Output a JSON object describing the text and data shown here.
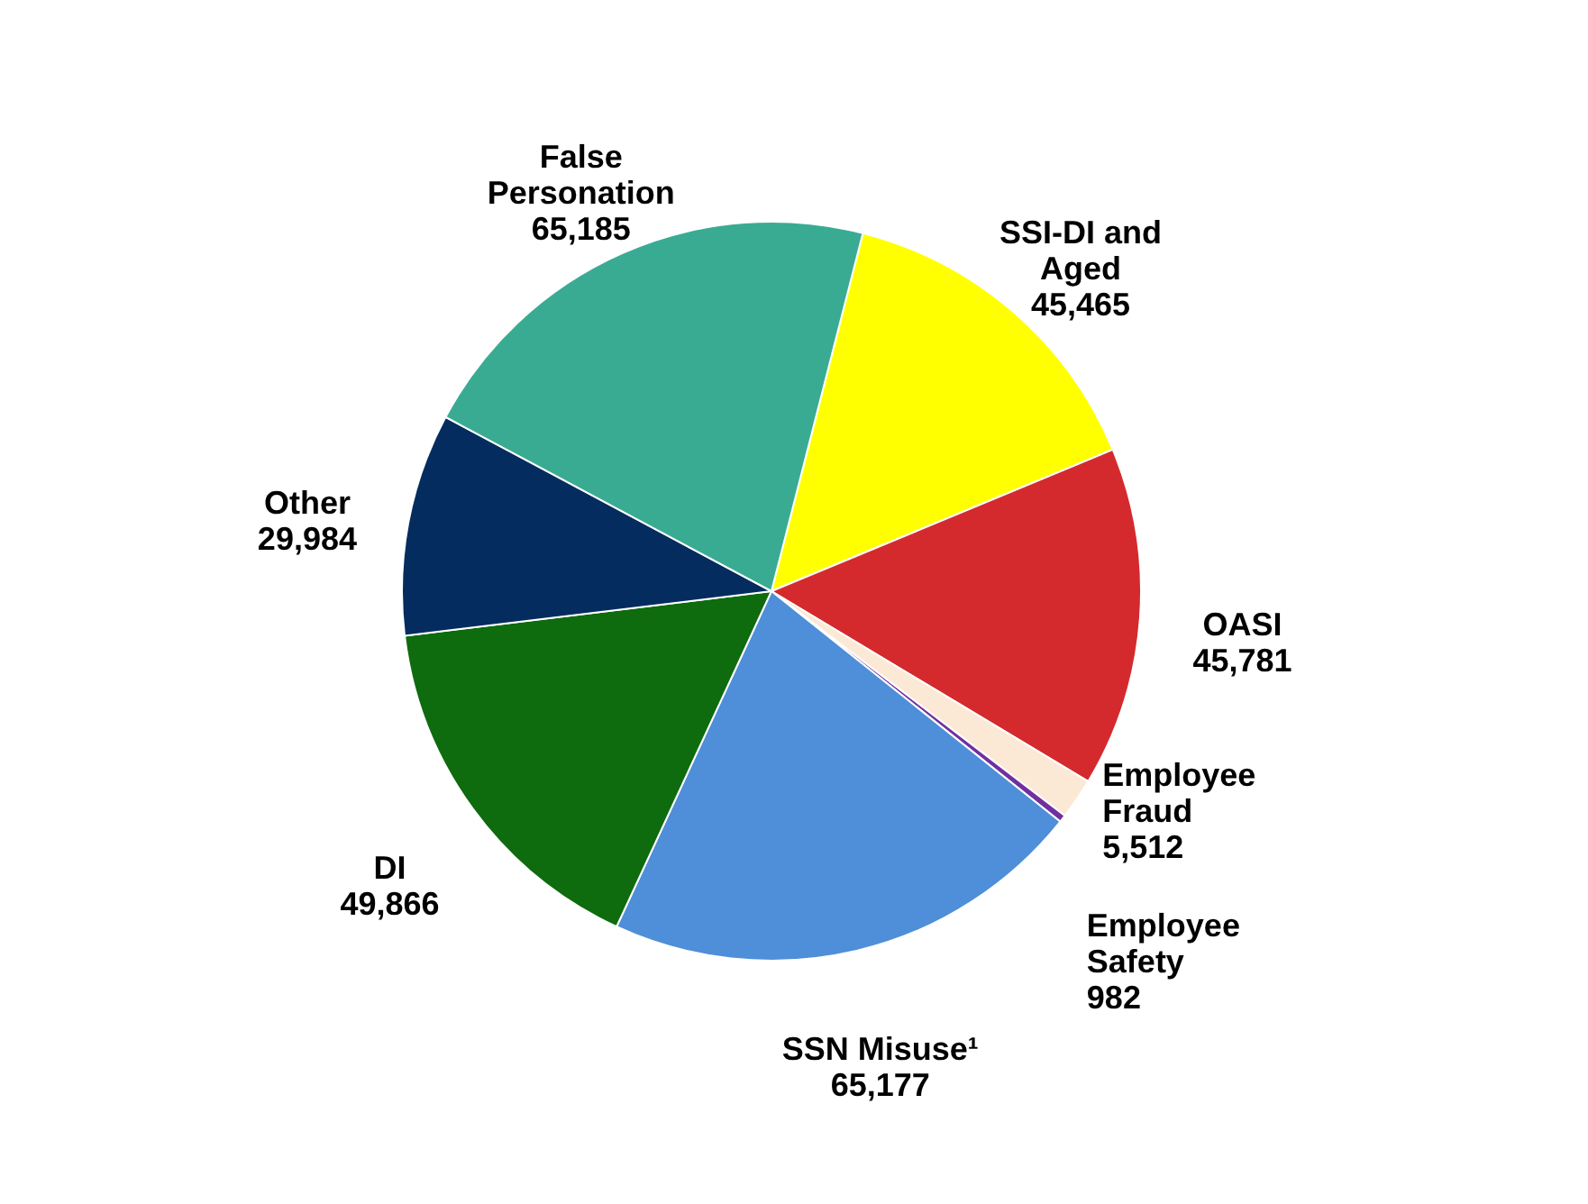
{
  "chart_data": {
    "type": "pie",
    "categories": [
      "SSI-DI and Aged",
      "OASI",
      "Employee Fraud",
      "Employee Safety",
      "SSN Misuse¹",
      "DI",
      "Other",
      "False Personation"
    ],
    "values": [
      45465,
      45781,
      5512,
      982,
      65177,
      49866,
      29984,
      65185
    ],
    "colors": [
      "#ffff00",
      "#d42a2e",
      "#fbe9d6",
      "#7030a0",
      "#4f8ed8",
      "#0e6b0e",
      "#052c5e",
      "#3aab93"
    ],
    "value_labels": [
      "45,465",
      "45,781",
      "5,512",
      "982",
      "65,177",
      "49,866",
      "29,984",
      "65,185"
    ],
    "legend": false
  }
}
